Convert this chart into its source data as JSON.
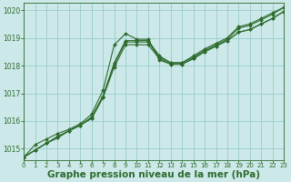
{
  "title": "Graphe pression niveau de la mer (hPa)",
  "bg_color": "#cce8e8",
  "grid_color": "#99cccc",
  "line_color": "#2d6b2d",
  "spine_color": "#2d6b2d",
  "xlim": [
    0,
    23
  ],
  "ylim": [
    1014.6,
    1020.25
  ],
  "yticks": [
    1015,
    1016,
    1017,
    1018,
    1019,
    1020
  ],
  "xticks": [
    0,
    1,
    2,
    3,
    4,
    5,
    6,
    7,
    8,
    9,
    10,
    11,
    12,
    13,
    14,
    15,
    16,
    17,
    18,
    19,
    20,
    21,
    22,
    23
  ],
  "series": [
    [
      1014.7,
      1014.95,
      1015.2,
      1015.4,
      1015.65,
      1015.85,
      1016.1,
      1016.85,
      1018.05,
      1018.85,
      1018.85,
      1018.85,
      1018.3,
      1018.1,
      1018.1,
      1018.3,
      1018.55,
      1018.75,
      1018.95,
      1019.35,
      1019.45,
      1019.65,
      1019.85,
      1020.1
    ],
    [
      1014.7,
      1014.95,
      1015.2,
      1015.4,
      1015.65,
      1015.85,
      1016.1,
      1016.85,
      1017.95,
      1018.75,
      1018.75,
      1018.75,
      1018.25,
      1018.05,
      1018.05,
      1018.25,
      1018.5,
      1018.7,
      1018.9,
      1019.2,
      1019.3,
      1019.5,
      1019.7,
      1019.95
    ],
    [
      1014.7,
      1014.95,
      1015.2,
      1015.45,
      1015.65,
      1015.85,
      1016.15,
      1016.9,
      1018.1,
      1018.9,
      1018.9,
      1018.9,
      1018.35,
      1018.1,
      1018.1,
      1018.35,
      1018.6,
      1018.8,
      1019.0,
      1019.4,
      1019.5,
      1019.7,
      1019.9,
      1020.1
    ],
    [
      1014.7,
      1015.15,
      1015.35,
      1015.55,
      1015.7,
      1015.9,
      1016.25,
      1017.1,
      1018.75,
      1019.15,
      1018.95,
      1018.95,
      1018.2,
      1018.05,
      1018.05,
      1018.25,
      1018.5,
      1018.7,
      1018.9,
      1019.2,
      1019.3,
      1019.5,
      1019.7,
      1019.95
    ]
  ],
  "marker": "D",
  "marker_size": 2.0,
  "linewidth": 0.8,
  "xlabel_fontsize": 7.5,
  "ytick_fontsize": 5.5,
  "xtick_fontsize": 5.0
}
